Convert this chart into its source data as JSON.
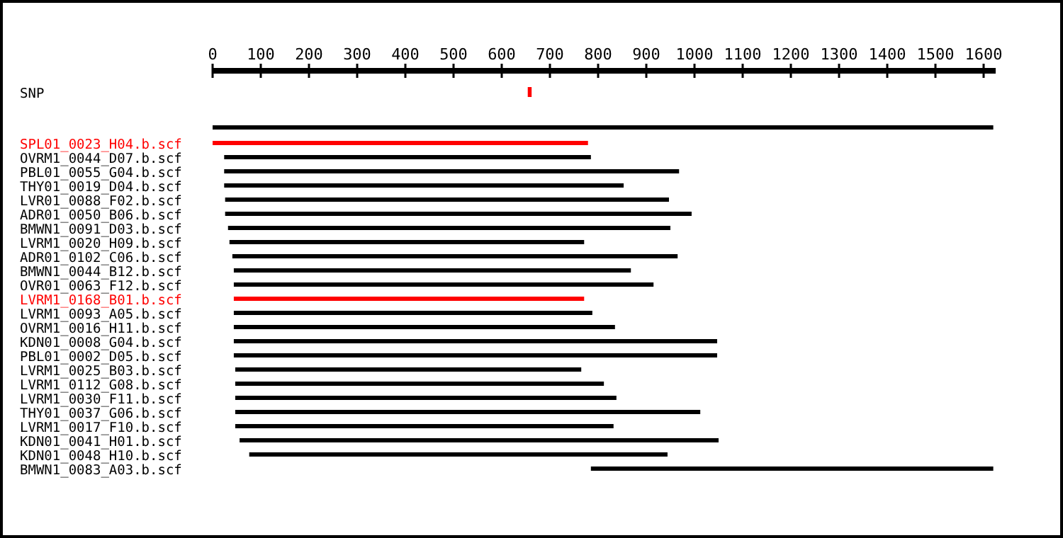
{
  "chart_data": {
    "type": "bar",
    "orientation": "horizontal",
    "categories": [
      "SNP",
      null,
      "SPL01_0023_H04.b.scf",
      "OVRM1_0044_D07.b.scf",
      "PBL01_0055_G04.b.scf",
      "THY01_0019_D04.b.scf",
      "LVR01_0088_F02.b.scf",
      "ADR01_0050_B06.b.scf",
      "BMWN1_0091_D03.b.scf",
      "LVRM1_0020_H09.b.scf",
      "ADR01_0102_C06.b.scf",
      "BMWN1_0044_B12.b.scf",
      "OVR01_0063_F12.b.scf",
      "LVRM1_0168_B01.b.scf",
      "LVRM1_0093_A05.b.scf",
      "OVRM1_0016_H11.b.scf",
      "KDN01_0008_G04.b.scf",
      "PBL01_0002_D05.b.scf",
      "LVRM1_0025_B03.b.scf",
      "LVRM1_0112_G08.b.scf",
      "LVRM1_0030_F11.b.scf",
      "THY01_0037_G06.b.scf",
      "LVRM1_0017_F10.b.scf",
      "KDN01_0041_H01.b.scf",
      "KDN01_0048_H10.b.scf",
      "BMWN1_0083_A03.b.scf"
    ],
    "base": [
      654,
      0,
      0,
      24,
      24,
      24,
      26,
      26,
      32,
      35,
      41,
      44,
      44,
      44,
      44,
      44,
      44,
      44,
      47,
      47,
      47,
      47,
      47,
      56,
      76,
      785
    ],
    "values": [
      8,
      1620,
      779,
      761,
      944,
      829,
      921,
      968,
      918,
      736,
      924,
      824,
      871,
      727,
      744,
      791,
      1003,
      1003,
      718,
      765,
      791,
      965,
      785,
      994,
      868,
      835
    ],
    "colors": [
      "#ff0000",
      "#000000",
      "#ff0000",
      "#000000",
      "#000000",
      "#000000",
      "#000000",
      "#000000",
      "#000000",
      "#000000",
      "#000000",
      "#000000",
      "#000000",
      "#ff0000",
      "#000000",
      "#000000",
      "#000000",
      "#000000",
      "#000000",
      "#000000",
      "#000000",
      "#000000",
      "#000000",
      "#000000",
      "#000000",
      "#000000"
    ],
    "xlim": [
      0,
      1625
    ],
    "xticks": [
      0,
      100,
      200,
      300,
      400,
      500,
      600,
      700,
      800,
      900,
      1000,
      1100,
      1200,
      1300,
      1400,
      1500,
      1600
    ],
    "grid": false
  }
}
